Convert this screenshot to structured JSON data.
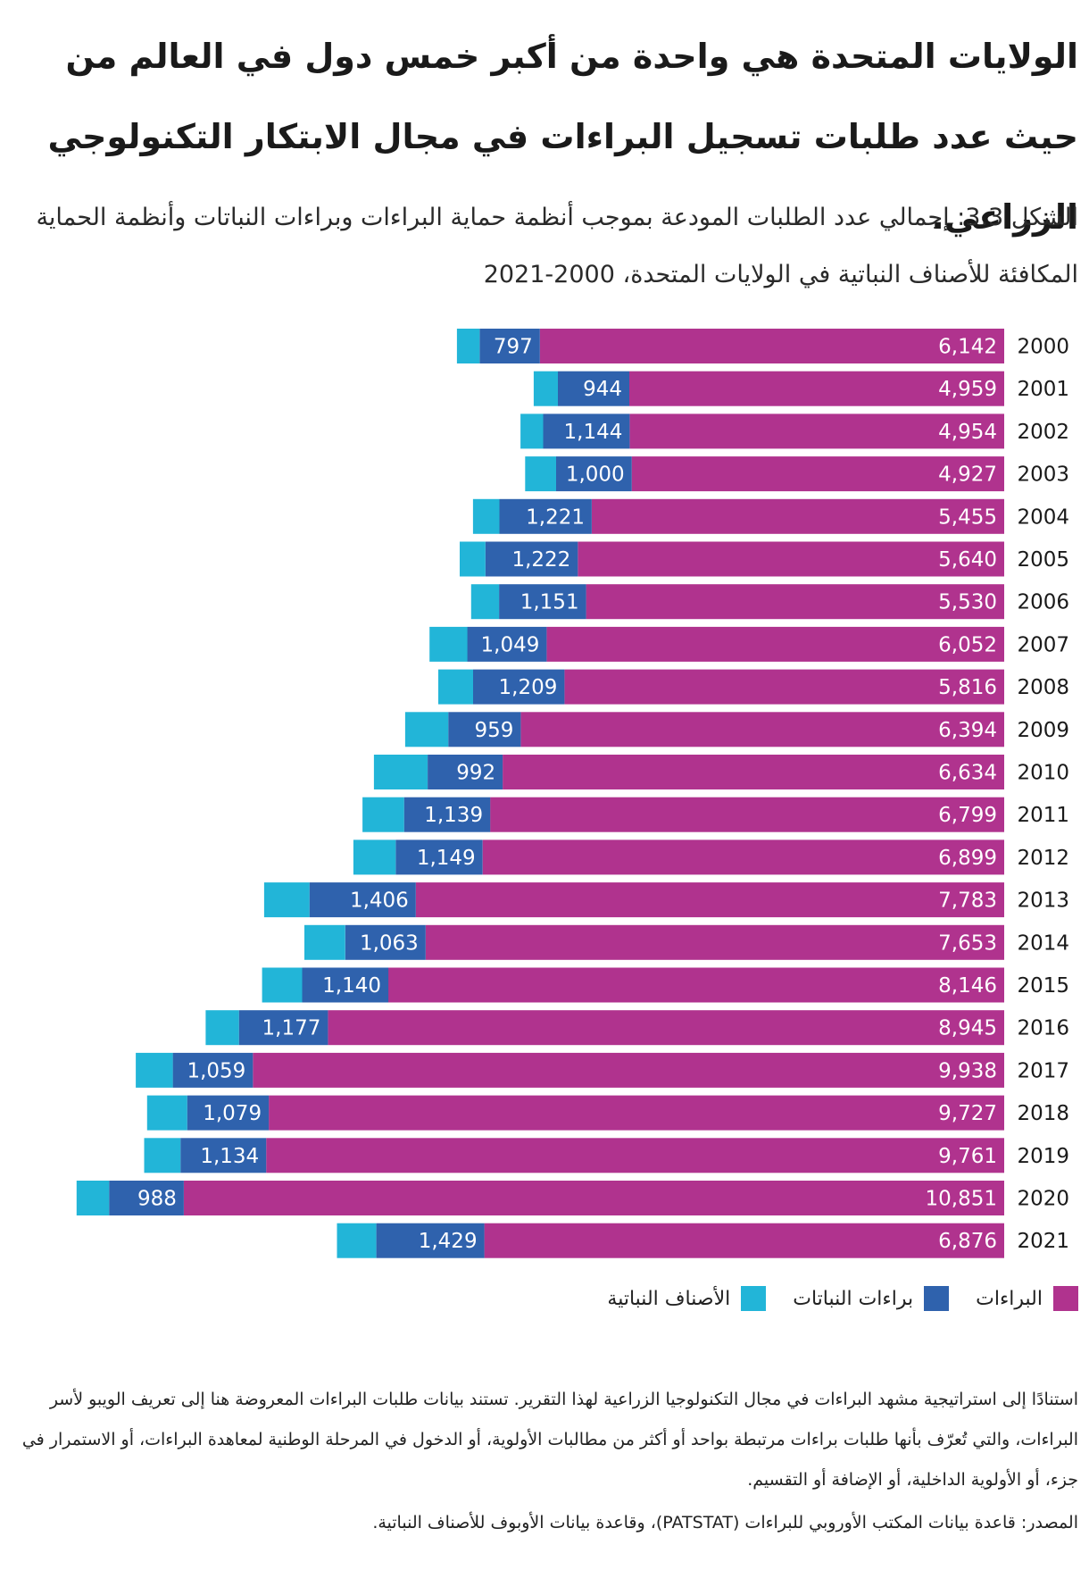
{
  "headline": "الولايات المتحدة هي واحدة من أكبر خمس دول في العالم من حيث عدد طلبات تسجيل البراءات في مجال الابتكار التكنولوجي الزراعي.",
  "subtitle": "الشكل 3.3: إجمالي عدد الطلبات المودعة بموجب أنظمة حماية البراءات وبراءات النباتات وأنظمة الحماية المكافئة للأصناف النباتية في الولايات المتحدة، 2000-2021",
  "legend": {
    "patents": "البراءات",
    "plant_patents": "براءات النباتات",
    "plant_varieties": "الأصناف النباتية"
  },
  "notes": "استنادًا إلى استراتيجية مشهد البراءات في مجال التكنولوجيا الزراعية لهذا التقرير. تستند بيانات طلبات البراءات المعروضة هنا إلى تعريف الويبو لأسر البراءات، والتي تُعرّف بأنها طلبات براءات مرتبطة بواحد أو أكثر من مطالبات الأولوية، أو الدخول في المرحلة الوطنية لمعاهدة البراءات، أو الاستمرار في جزء، أو الأولوية الداخلية، أو الإضافة أو التقسيم.",
  "source": "المصدر: قاعدة بيانات المكتب الأوروبي للبراءات (PATSTAT)، وقاعدة بيانات الأوبوف للأصناف النباتية.",
  "colors": {
    "patents": "#b0338e",
    "plant_patents": "#2f62ad",
    "plant_varieties": "#22b5d8"
  },
  "chart_data": {
    "type": "bar",
    "orientation": "horizontal",
    "stacked": true,
    "categories": [
      "2000",
      "2001",
      "2002",
      "2003",
      "2004",
      "2005",
      "2006",
      "2007",
      "2008",
      "2009",
      "2010",
      "2011",
      "2012",
      "2013",
      "2014",
      "2015",
      "2016",
      "2017",
      "2018",
      "2019",
      "2020",
      "2021"
    ],
    "series": [
      {
        "name": "البراءات",
        "key": "patents",
        "values": [
          6142,
          4959,
          4954,
          4927,
          5455,
          5640,
          5530,
          6052,
          5816,
          6394,
          6634,
          6799,
          6899,
          7783,
          7653,
          8146,
          8945,
          9938,
          9727,
          9761,
          10851,
          6876
        ],
        "labels": [
          "6,142",
          "4,959",
          "4,954",
          "4,927",
          "5,455",
          "5,640",
          "5,530",
          "6,052",
          "5,816",
          "6,394",
          "6,634",
          "6,799",
          "6,899",
          "7,783",
          "7,653",
          "8,146",
          "8,945",
          "9,938",
          "9,727",
          "9,761",
          "10,851",
          "6,876"
        ]
      },
      {
        "name": "براءات النباتات",
        "key": "plant_patents",
        "values": [
          797,
          944,
          1144,
          1000,
          1221,
          1222,
          1151,
          1049,
          1209,
          959,
          992,
          1139,
          1149,
          1406,
          1063,
          1140,
          1177,
          1059,
          1079,
          1134,
          988,
          1429
        ],
        "labels": [
          "797",
          "944",
          "1,144",
          "1,000",
          "1,221",
          "1,222",
          "1,151",
          "1,049",
          "1,209",
          "959",
          "992",
          "1,139",
          "1,149",
          "1,406",
          "1,063",
          "1,140",
          "1,177",
          "1,059",
          "1,079",
          "1,134",
          "988",
          "1,429"
        ]
      },
      {
        "name": "الأصناف النباتية",
        "key": "plant_varieties",
        "values": [
          300,
          320,
          300,
          410,
          350,
          340,
          370,
          500,
          460,
          570,
          710,
          550,
          560,
          600,
          540,
          530,
          440,
          490,
          530,
          480,
          430,
          520
        ]
      }
    ],
    "title": "الشكل 3.3",
    "xlabel": "",
    "ylabel": "",
    "grid": false,
    "legend_position": "bottom"
  }
}
